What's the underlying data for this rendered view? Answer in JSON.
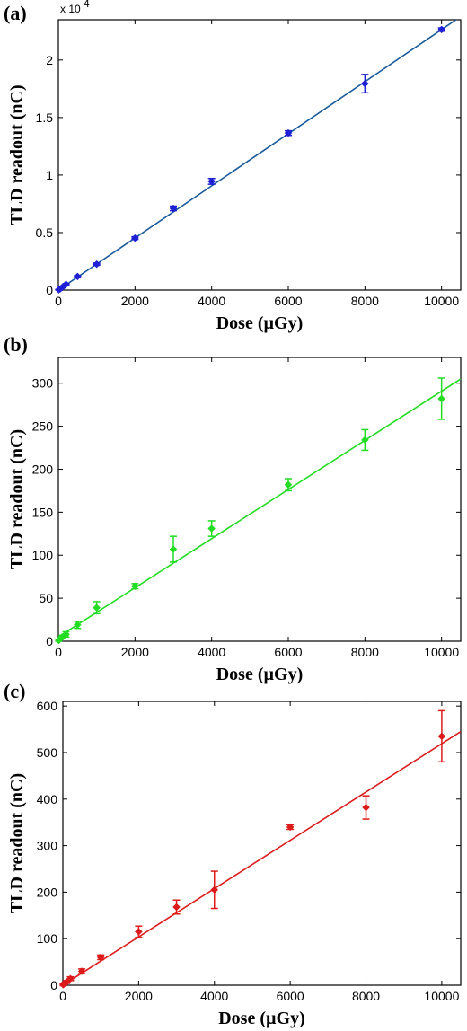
{
  "chart_data": [
    {
      "type": "scatter",
      "panel_label": "(a)",
      "xlabel": "Dose (µGy)",
      "ylabel": "TLD readout (nC)",
      "xlim": [
        0,
        10500
      ],
      "ylim": [
        0,
        23500
      ],
      "xticks": [
        0,
        2000,
        4000,
        6000,
        8000,
        10000
      ],
      "xtick_labels": [
        "0",
        "2000",
        "4000",
        "6000",
        "8000",
        "10000"
      ],
      "yticks": [
        0,
        5000,
        10000,
        15000,
        20000
      ],
      "ytick_labels": [
        "0",
        "0.5",
        "1",
        "1.5",
        "2"
      ],
      "y_multiplier": "x 10",
      "y_multiplier_exp": "4",
      "color": "#1f1fd6",
      "fit_color": "#1a5a9a",
      "x": [
        10,
        50,
        100,
        200,
        500,
        1000,
        2000,
        3000,
        4000,
        6000,
        8000,
        10000
      ],
      "y": [
        30,
        110,
        230,
        500,
        1180,
        2250,
        4520,
        7100,
        9450,
        13650,
        17950,
        22650
      ],
      "err": [
        20,
        30,
        40,
        60,
        80,
        100,
        120,
        200,
        250,
        200,
        800,
        150
      ],
      "fit": {
        "x": [
          0,
          10500
        ],
        "y": [
          0,
          23780
        ]
      }
    },
    {
      "type": "scatter",
      "panel_label": "(b)",
      "xlabel": "Dose (µGy)",
      "ylabel": "TLD readout (nC)",
      "xlim": [
        0,
        10500
      ],
      "ylim": [
        0,
        330
      ],
      "xticks": [
        0,
        2000,
        4000,
        6000,
        8000,
        10000
      ],
      "xtick_labels": [
        "0",
        "2000",
        "4000",
        "6000",
        "8000",
        "10000"
      ],
      "yticks": [
        0,
        50,
        100,
        150,
        200,
        250,
        300
      ],
      "ytick_labels": [
        "0",
        "50",
        "100",
        "150",
        "200",
        "250",
        "300"
      ],
      "color": "#22dd22",
      "fit_color": "#22dd22",
      "x": [
        10,
        50,
        100,
        200,
        500,
        1000,
        2000,
        3000,
        4000,
        6000,
        8000,
        10000
      ],
      "y": [
        1,
        3,
        5,
        8,
        19,
        39,
        64,
        107,
        131,
        182,
        234,
        282
      ],
      "err": [
        1,
        1,
        2,
        3,
        4,
        7,
        3,
        15,
        9,
        7,
        12,
        24
      ],
      "fit": {
        "x": [
          0,
          10500
        ],
        "y": [
          5,
          305
        ]
      }
    },
    {
      "type": "scatter",
      "panel_label": "(c)",
      "xlabel": "Dose (µGy)",
      "ylabel": "TLD readout (nC)",
      "xlim": [
        0,
        10500
      ],
      "ylim": [
        0,
        610
      ],
      "xticks": [
        0,
        2000,
        4000,
        6000,
        8000,
        10000
      ],
      "xtick_labels": [
        "0",
        "2000",
        "4000",
        "6000",
        "8000",
        "10000"
      ],
      "yticks": [
        0,
        100,
        200,
        300,
        400,
        500,
        600
      ],
      "ytick_labels": [
        "0",
        "100",
        "200",
        "300",
        "400",
        "500",
        "600"
      ],
      "color": "#dd1a1a",
      "fit_color": "#dd1a1a",
      "x": [
        10,
        50,
        100,
        200,
        500,
        1000,
        2000,
        3000,
        4000,
        6000,
        8000,
        10000
      ],
      "y": [
        1,
        4,
        7,
        14,
        30,
        60,
        115,
        168,
        205,
        340,
        382,
        535
      ],
      "err": [
        2,
        2,
        3,
        4,
        5,
        5,
        12,
        15,
        40,
        5,
        25,
        55
      ],
      "fit": {
        "x": [
          0,
          10500
        ],
        "y": [
          0,
          545
        ]
      }
    }
  ]
}
